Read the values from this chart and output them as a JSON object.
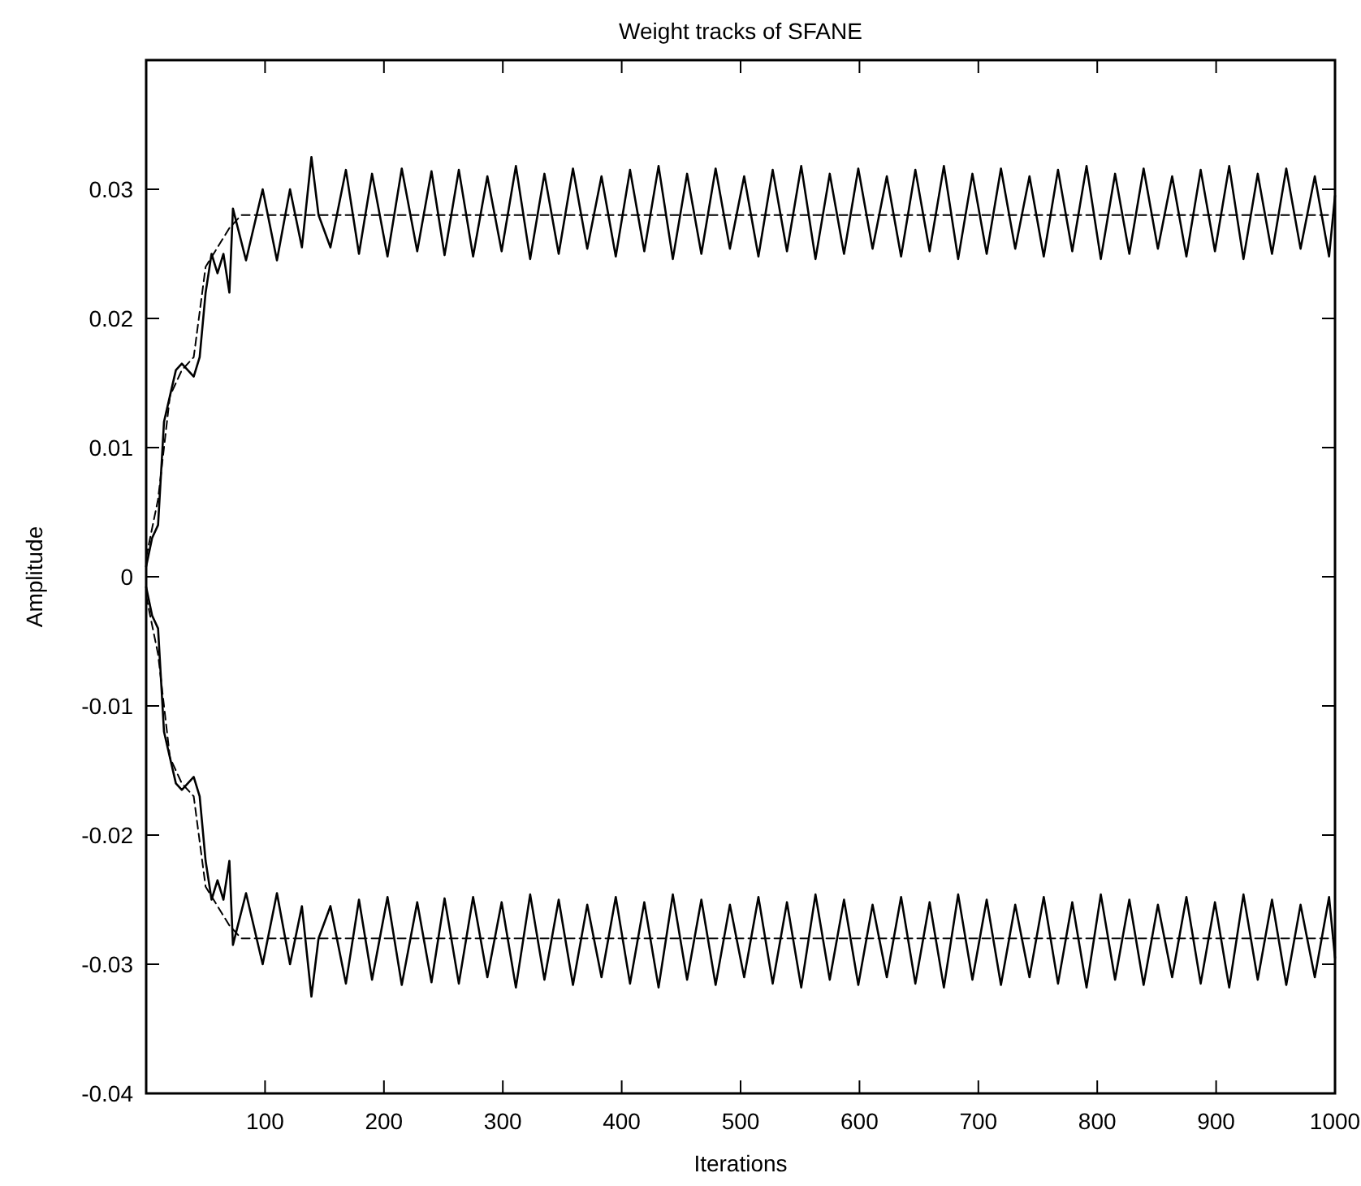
{
  "chart_data": {
    "type": "line",
    "title": "Weight tracks of SFANE",
    "xlabel": "Iterations",
    "ylabel": "Amplitude",
    "xlim": [
      0,
      1000
    ],
    "xticks": [
      100,
      200,
      300,
      400,
      500,
      600,
      700,
      800,
      900,
      1000
    ],
    "ylim": [
      -0.04,
      0.04
    ],
    "yticks": [
      -0.04,
      -0.03,
      -0.02,
      -0.01,
      0,
      0.01,
      0.02,
      0.03
    ],
    "grid": false,
    "marker": "none",
    "series": [
      {
        "color": "#000000",
        "line_style": "solid",
        "x": [
          0,
          5,
          10,
          15,
          20,
          25,
          30,
          40,
          45,
          50,
          55,
          60,
          65,
          70,
          73,
          84,
          98,
          110,
          121,
          131,
          139,
          145,
          155,
          168,
          179,
          190,
          203,
          215,
          228,
          240,
          251,
          263,
          275,
          287,
          299,
          311,
          323,
          335,
          347,
          359,
          371,
          383,
          395,
          407,
          419,
          431,
          443,
          455,
          467,
          479,
          491,
          503,
          515,
          527,
          539,
          551,
          563,
          575,
          587,
          599,
          611,
          623,
          635,
          647,
          659,
          671,
          683,
          695,
          707,
          719,
          731,
          743,
          755,
          767,
          779,
          791,
          803,
          815,
          827,
          839,
          851,
          863,
          875,
          887,
          899,
          911,
          923,
          935,
          947,
          959,
          971,
          983,
          995,
          1000
        ],
        "values": [
          0.0008,
          0.003,
          0.004,
          0.012,
          0.014,
          0.016,
          0.0165,
          0.0155,
          0.017,
          0.022,
          0.025,
          0.0235,
          0.025,
          0.022,
          0.0285,
          0.0245,
          0.03,
          0.0245,
          0.03,
          0.0255,
          0.0325,
          0.028,
          0.0255,
          0.0315,
          0.025,
          0.0312,
          0.0248,
          0.0316,
          0.0252,
          0.0314,
          0.0249,
          0.0315,
          0.0248,
          0.031,
          0.0252,
          0.0318,
          0.0246,
          0.0312,
          0.025,
          0.0316,
          0.0254,
          0.031,
          0.0248,
          0.0315,
          0.0252,
          0.0318,
          0.0246,
          0.0312,
          0.025,
          0.0316,
          0.0254,
          0.031,
          0.0248,
          0.0315,
          0.0252,
          0.0318,
          0.0246,
          0.0312,
          0.025,
          0.0316,
          0.0254,
          0.031,
          0.0248,
          0.0315,
          0.0252,
          0.0318,
          0.0246,
          0.0312,
          0.025,
          0.0316,
          0.0254,
          0.031,
          0.0248,
          0.0315,
          0.0252,
          0.0318,
          0.0246,
          0.0312,
          0.025,
          0.0316,
          0.0254,
          0.031,
          0.0248,
          0.0315,
          0.0252,
          0.0318,
          0.0246,
          0.0312,
          0.025,
          0.0316,
          0.0254,
          0.031,
          0.0248,
          0.0295
        ]
      },
      {
        "color": "#000000",
        "line_style": "solid",
        "x": [
          0,
          5,
          10,
          15,
          20,
          25,
          30,
          40,
          45,
          50,
          55,
          60,
          65,
          70,
          73,
          84,
          98,
          110,
          121,
          131,
          139,
          145,
          155,
          168,
          179,
          190,
          203,
          215,
          228,
          240,
          251,
          263,
          275,
          287,
          299,
          311,
          323,
          335,
          347,
          359,
          371,
          383,
          395,
          407,
          419,
          431,
          443,
          455,
          467,
          479,
          491,
          503,
          515,
          527,
          539,
          551,
          563,
          575,
          587,
          599,
          611,
          623,
          635,
          647,
          659,
          671,
          683,
          695,
          707,
          719,
          731,
          743,
          755,
          767,
          779,
          791,
          803,
          815,
          827,
          839,
          851,
          863,
          875,
          887,
          899,
          911,
          923,
          935,
          947,
          959,
          971,
          983,
          995,
          1000
        ],
        "values": [
          -0.0008,
          -0.003,
          -0.004,
          -0.012,
          -0.014,
          -0.016,
          -0.0165,
          -0.0155,
          -0.017,
          -0.022,
          -0.025,
          -0.0235,
          -0.025,
          -0.022,
          -0.0285,
          -0.0245,
          -0.03,
          -0.0245,
          -0.03,
          -0.0255,
          -0.0325,
          -0.028,
          -0.0255,
          -0.0315,
          -0.025,
          -0.0312,
          -0.0248,
          -0.0316,
          -0.0252,
          -0.0314,
          -0.0249,
          -0.0315,
          -0.0248,
          -0.031,
          -0.0252,
          -0.0318,
          -0.0246,
          -0.0312,
          -0.025,
          -0.0316,
          -0.0254,
          -0.031,
          -0.0248,
          -0.0315,
          -0.0252,
          -0.0318,
          -0.0246,
          -0.0312,
          -0.025,
          -0.0316,
          -0.0254,
          -0.031,
          -0.0248,
          -0.0315,
          -0.0252,
          -0.0318,
          -0.0246,
          -0.0312,
          -0.025,
          -0.0316,
          -0.0254,
          -0.031,
          -0.0248,
          -0.0315,
          -0.0252,
          -0.0318,
          -0.0246,
          -0.0312,
          -0.025,
          -0.0316,
          -0.0254,
          -0.031,
          -0.0248,
          -0.0315,
          -0.0252,
          -0.0318,
          -0.0246,
          -0.0312,
          -0.025,
          -0.0316,
          -0.0254,
          -0.031,
          -0.0248,
          -0.0315,
          -0.0252,
          -0.0318,
          -0.0246,
          -0.0312,
          -0.025,
          -0.0316,
          -0.0254,
          -0.031,
          -0.0248,
          -0.0295
        ]
      },
      {
        "color": "#000000",
        "line_style": "dashed",
        "x": [
          0,
          10,
          20,
          30,
          40,
          50,
          60,
          70,
          80,
          1000
        ],
        "values": [
          0.0015,
          0.006,
          0.014,
          0.016,
          0.017,
          0.024,
          0.0255,
          0.027,
          0.028,
          0.028
        ]
      },
      {
        "color": "#000000",
        "line_style": "dashed",
        "x": [
          0,
          10,
          20,
          30,
          40,
          50,
          60,
          70,
          80,
          1000
        ],
        "values": [
          -0.0015,
          -0.006,
          -0.014,
          -0.016,
          -0.017,
          -0.024,
          -0.0255,
          -0.027,
          -0.028,
          -0.028
        ]
      }
    ]
  }
}
